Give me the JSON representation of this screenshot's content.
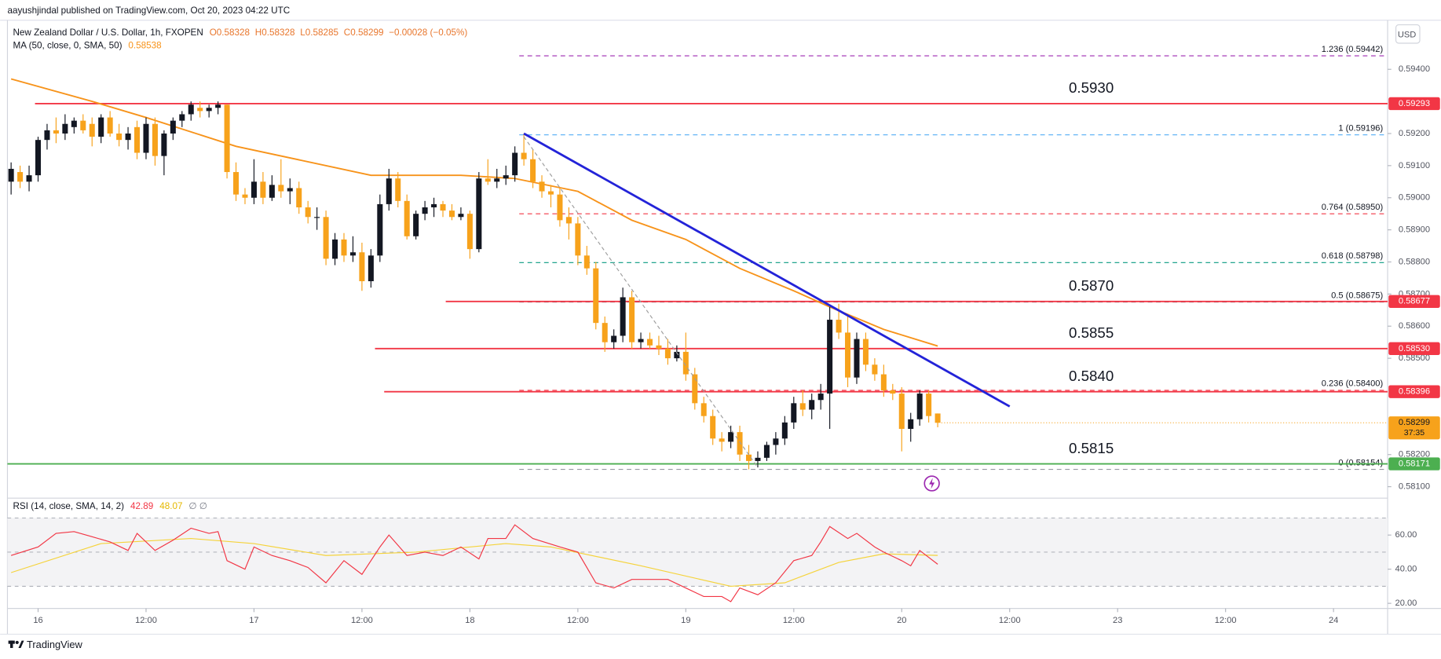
{
  "chart_data": {
    "type": "candlestick",
    "publisher": "aayushjindal published on TradingView.com, Oct 20, 2023 04:22 UTC",
    "title": "New Zealand Dollar / U.S. Dollar, 1h, FXOPEN",
    "ohlc": [
      "O0.58328",
      "H0.58328",
      "L0.58285",
      "C0.58299",
      "−0.00028 (−0.05%)"
    ],
    "currency": "USD",
    "up_color": "#131722",
    "down_color": "#f7a21b",
    "candles": [
      [
        0.5905,
        0.5911,
        0.5901,
        0.5909
      ],
      [
        0.5908,
        0.591,
        0.5903,
        0.5905
      ],
      [
        0.5905,
        0.591,
        0.5902,
        0.5907
      ],
      [
        0.5907,
        0.5919,
        0.5905,
        0.5918
      ],
      [
        0.5918,
        0.5923,
        0.5915,
        0.5921
      ],
      [
        0.5921,
        0.5925,
        0.5917,
        0.592
      ],
      [
        0.592,
        0.5926,
        0.5918,
        0.5923
      ],
      [
        0.5922,
        0.5925,
        0.592,
        0.5924
      ],
      [
        0.5924,
        0.5926,
        0.592,
        0.5921
      ],
      [
        0.5923,
        0.5925,
        0.5916,
        0.5919
      ],
      [
        0.5919,
        0.5926,
        0.5917,
        0.5925
      ],
      [
        0.5925,
        0.5927,
        0.5919,
        0.592
      ],
      [
        0.592,
        0.5923,
        0.5916,
        0.5918
      ],
      [
        0.5918,
        0.5922,
        0.5915,
        0.592
      ],
      [
        0.5922,
        0.5924,
        0.5912,
        0.5914
      ],
      [
        0.5914,
        0.5925,
        0.5912,
        0.5923
      ],
      [
        0.5923,
        0.5925,
        0.591,
        0.5913
      ],
      [
        0.5913,
        0.5921,
        0.5907,
        0.592
      ],
      [
        0.592,
        0.5925,
        0.5918,
        0.5924
      ],
      [
        0.5924,
        0.5927,
        0.5922,
        0.5926
      ],
      [
        0.5926,
        0.593,
        0.5924,
        0.5929
      ],
      [
        0.5928,
        0.593,
        0.5925,
        0.5927
      ],
      [
        0.5927,
        0.5929,
        0.5925,
        0.5928
      ],
      [
        0.5928,
        0.593,
        0.5926,
        0.5929
      ],
      [
        0.5929,
        0.5929,
        0.5906,
        0.5908
      ],
      [
        0.5908,
        0.5911,
        0.5899,
        0.5901
      ],
      [
        0.5901,
        0.5903,
        0.5898,
        0.59
      ],
      [
        0.59,
        0.5912,
        0.5898,
        0.5905
      ],
      [
        0.5905,
        0.5908,
        0.5898,
        0.59
      ],
      [
        0.59,
        0.5907,
        0.5899,
        0.5904
      ],
      [
        0.5904,
        0.5912,
        0.59,
        0.5902
      ],
      [
        0.5902,
        0.5906,
        0.5898,
        0.5903
      ],
      [
        0.5903,
        0.5905,
        0.5895,
        0.5897
      ],
      [
        0.5897,
        0.5899,
        0.5892,
        0.5894
      ],
      [
        0.5894,
        0.5897,
        0.589,
        0.5894
      ],
      [
        0.5894,
        0.5896,
        0.5879,
        0.5881
      ],
      [
        0.5881,
        0.5889,
        0.5879,
        0.5887
      ],
      [
        0.5887,
        0.5889,
        0.588,
        0.5882
      ],
      [
        0.5882,
        0.5888,
        0.588,
        0.5883
      ],
      [
        0.5883,
        0.5886,
        0.5871,
        0.5874
      ],
      [
        0.5874,
        0.5884,
        0.5872,
        0.5882
      ],
      [
        0.5882,
        0.5901,
        0.588,
        0.5898
      ],
      [
        0.5898,
        0.5909,
        0.5896,
        0.5906
      ],
      [
        0.5906,
        0.5908,
        0.5897,
        0.5899
      ],
      [
        0.5899,
        0.5901,
        0.5887,
        0.5888
      ],
      [
        0.5888,
        0.5896,
        0.5887,
        0.5895
      ],
      [
        0.5895,
        0.5899,
        0.5893,
        0.5897
      ],
      [
        0.5897,
        0.59,
        0.5894,
        0.5898
      ],
      [
        0.5898,
        0.5899,
        0.5894,
        0.5896
      ],
      [
        0.5896,
        0.5898,
        0.5893,
        0.5894
      ],
      [
        0.5894,
        0.5897,
        0.5893,
        0.5895
      ],
      [
        0.5895,
        0.5896,
        0.5881,
        0.5884
      ],
      [
        0.5884,
        0.5908,
        0.5883,
        0.5906
      ],
      [
        0.5906,
        0.5912,
        0.5904,
        0.5905
      ],
      [
        0.5905,
        0.5909,
        0.5903,
        0.5906
      ],
      [
        0.5906,
        0.591,
        0.5904,
        0.5907
      ],
      [
        0.5907,
        0.5916,
        0.5905,
        0.5914
      ],
      [
        0.5914,
        0.592,
        0.591,
        0.5912
      ],
      [
        0.5912,
        0.5915,
        0.5903,
        0.5905
      ],
      [
        0.5905,
        0.5907,
        0.59,
        0.5902
      ],
      [
        0.5902,
        0.5904,
        0.5897,
        0.5901
      ],
      [
        0.5901,
        0.5903,
        0.5891,
        0.5893
      ],
      [
        0.5894,
        0.5897,
        0.5887,
        0.5892
      ],
      [
        0.5892,
        0.5894,
        0.5879,
        0.5882
      ],
      [
        0.5882,
        0.5885,
        0.5876,
        0.5878
      ],
      [
        0.5878,
        0.588,
        0.5859,
        0.5861
      ],
      [
        0.5861,
        0.5863,
        0.5852,
        0.5855
      ],
      [
        0.5855,
        0.5859,
        0.5853,
        0.5857
      ],
      [
        0.5857,
        0.5872,
        0.5855,
        0.5869
      ],
      [
        0.5869,
        0.5871,
        0.5853,
        0.5855
      ],
      [
        0.5855,
        0.5858,
        0.5853,
        0.5856
      ],
      [
        0.5856,
        0.5858,
        0.5853,
        0.5854
      ],
      [
        0.5854,
        0.5857,
        0.5851,
        0.5853
      ],
      [
        0.5853,
        0.5856,
        0.5848,
        0.585
      ],
      [
        0.585,
        0.5854,
        0.5849,
        0.5852
      ],
      [
        0.5852,
        0.5858,
        0.5843,
        0.5845
      ],
      [
        0.5845,
        0.5847,
        0.5834,
        0.5836
      ],
      [
        0.5836,
        0.5838,
        0.583,
        0.5832
      ],
      [
        0.5832,
        0.5834,
        0.5823,
        0.5825
      ],
      [
        0.5825,
        0.5827,
        0.5821,
        0.5824
      ],
      [
        0.5824,
        0.5829,
        0.5822,
        0.5827
      ],
      [
        0.5827,
        0.5829,
        0.5818,
        0.582
      ],
      [
        0.582,
        0.5823,
        0.58154,
        0.5818
      ],
      [
        0.5818,
        0.5821,
        0.5816,
        0.5819
      ],
      [
        0.5819,
        0.5824,
        0.5818,
        0.5823
      ],
      [
        0.5823,
        0.5827,
        0.582,
        0.5825
      ],
      [
        0.5825,
        0.5832,
        0.5823,
        0.583
      ],
      [
        0.583,
        0.5838,
        0.5828,
        0.5836
      ],
      [
        0.5836,
        0.584,
        0.5832,
        0.5834
      ],
      [
        0.5834,
        0.5839,
        0.5831,
        0.5837
      ],
      [
        0.5837,
        0.5842,
        0.5834,
        0.5839
      ],
      [
        0.5839,
        0.5866,
        0.5828,
        0.5862
      ],
      [
        0.5862,
        0.5867,
        0.5856,
        0.5858
      ],
      [
        0.5858,
        0.5863,
        0.5841,
        0.5844
      ],
      [
        0.5844,
        0.5858,
        0.5842,
        0.5856
      ],
      [
        0.5856,
        0.5858,
        0.5846,
        0.5848
      ],
      [
        0.5848,
        0.585,
        0.5843,
        0.5845
      ],
      [
        0.5845,
        0.5848,
        0.5838,
        0.584
      ],
      [
        0.584,
        0.5842,
        0.5837,
        0.5839
      ],
      [
        0.5839,
        0.5841,
        0.5821,
        0.5828
      ],
      [
        0.5828,
        0.5833,
        0.5824,
        0.5831
      ],
      [
        0.5831,
        0.584,
        0.5829,
        0.5839
      ],
      [
        0.5839,
        0.584,
        0.583,
        0.5832
      ],
      [
        0.58328,
        0.58328,
        0.58285,
        0.58299
      ]
    ],
    "ylim": [
      0.5807,
      0.5953
    ],
    "yticks": [
      {
        "value": 0.581,
        "label": "0.58100"
      },
      {
        "value": 0.582,
        "label": "0.58200"
      },
      {
        "value": 0.585,
        "label": "0.58500"
      },
      {
        "value": 0.586,
        "label": "0.58600"
      },
      {
        "value": 0.587,
        "label": "0.58700"
      },
      {
        "value": 0.588,
        "label": "0.58800"
      },
      {
        "value": 0.589,
        "label": "0.58900"
      },
      {
        "value": 0.59,
        "label": "0.59000"
      },
      {
        "value": 0.591,
        "label": "0.59100"
      },
      {
        "value": 0.592,
        "label": "0.59200"
      },
      {
        "value": 0.594,
        "label": "0.59400"
      }
    ],
    "xticks": [
      {
        "value": 3,
        "label": "16"
      },
      {
        "value": 15,
        "label": "12:00"
      },
      {
        "value": 27,
        "label": "17"
      },
      {
        "value": 39,
        "label": "12:00"
      },
      {
        "value": 51,
        "label": "18"
      },
      {
        "value": 63,
        "label": "12:00"
      },
      {
        "value": 75,
        "label": "19"
      },
      {
        "value": 87,
        "label": "12:00"
      },
      {
        "value": 99,
        "label": "20"
      },
      {
        "value": 111,
        "label": "12:00"
      },
      {
        "value": 123,
        "label": "23"
      },
      {
        "value": 135,
        "label": "12:00"
      },
      {
        "value": 147,
        "label": "24"
      }
    ],
    "ma": {
      "name": "MA (50, close, 0, SMA, 50)",
      "color": "#f7931a",
      "x": [
        0,
        9,
        15,
        25,
        40,
        50,
        56,
        63,
        69,
        75,
        81,
        87,
        91,
        97,
        103
      ],
      "values": [
        0.5937,
        0.593,
        0.5925,
        0.5916,
        0.5907,
        0.5907,
        0.5906,
        0.5902,
        0.5893,
        0.5887,
        0.5878,
        0.5871,
        0.5866,
        0.5859,
        0.58538
      ]
    },
    "current": {
      "value": 0.58299,
      "label": "0.58299",
      "countdown": "37:35",
      "color": "#f7a21b"
    },
    "levels": [
      {
        "value": 0.59293,
        "value_label": "0.59293",
        "annotation": "0.5930",
        "color": "#f23645"
      },
      {
        "value": 0.58677,
        "value_label": "0.58677",
        "annotation": "0.5870",
        "color": "#f23645"
      },
      {
        "value": 0.5853,
        "value_label": "0.58530",
        "annotation": "0.5855",
        "color": "#f23645"
      },
      {
        "value": 0.58396,
        "value_label": "0.58396",
        "annotation": "0.5840",
        "color": "#f23645"
      },
      {
        "value": 0.58171,
        "value_label": "0.58171",
        "annotation": "0.5815",
        "color": "#4caf50"
      }
    ],
    "annotation_color": "#f7a21b",
    "fib": [
      {
        "value": 0.59442,
        "label": "1.236 (0.59442)",
        "color": "#9c27b0"
      },
      {
        "value": 0.59196,
        "label": "1 (0.59196)",
        "color": "#64b5f6"
      },
      {
        "value": 0.5895,
        "label": "0.764 (0.58950)",
        "color": "#f23645"
      },
      {
        "value": 0.58798,
        "label": "0.618 (0.58798)",
        "color": "#089981"
      },
      {
        "value": 0.58675,
        "label": "0.5 (0.58675)",
        "color": "#787b86"
      },
      {
        "value": 0.584,
        "label": "0.236 (0.58400)",
        "color": "#f23645"
      },
      {
        "value": 0.58154,
        "label": "0 (0.58154)",
        "color": "#9598a1"
      }
    ],
    "trendlines": [
      {
        "x": [
          57,
          111
        ],
        "values": [
          0.592,
          0.5835
        ],
        "color": "#2323d8",
        "dashed": false
      },
      {
        "x": [
          57,
          83
        ],
        "values": [
          0.5919,
          0.5816
        ],
        "color": "#9e9e9e",
        "dashed": true
      }
    ],
    "rsi": {
      "name": "RSI (14, close, SMA, 14, 2)",
      "flags": "∅ ∅",
      "color": "#f23645",
      "x": [
        0,
        3,
        5,
        7,
        9,
        11,
        13,
        14,
        16,
        18,
        20,
        22,
        23,
        24,
        26,
        27,
        29,
        31,
        33,
        35,
        37,
        39,
        41,
        42,
        44,
        46,
        48,
        50,
        52,
        53,
        55,
        56,
        58,
        61,
        63,
        65,
        67,
        69,
        71,
        73,
        75,
        77,
        79,
        80,
        81,
        83,
        85,
        87,
        89,
        90,
        91,
        93,
        94,
        96,
        97,
        99,
        100,
        101,
        103
      ],
      "values": [
        48,
        53,
        61,
        62,
        59,
        56,
        51,
        61,
        51,
        57,
        64,
        61,
        62,
        45,
        40,
        53,
        48,
        45,
        41,
        32,
        45,
        37,
        53,
        60,
        48,
        50,
        48,
        53,
        46,
        58,
        58,
        66,
        58,
        53,
        50,
        32,
        29,
        34,
        34,
        34,
        29,
        24,
        24,
        21,
        29,
        25,
        32,
        45,
        48,
        56,
        65,
        58,
        61,
        53,
        50,
        45,
        42,
        51,
        42.89
      ],
      "ma": {
        "color": "#f5d33b",
        "x": [
          0,
          10,
          20,
          27,
          35,
          45,
          55,
          60,
          70,
          80,
          86,
          92,
          97,
          103
        ],
        "values": [
          38,
          55,
          58,
          55,
          48,
          50,
          55,
          53,
          42,
          30,
          32,
          44,
          49,
          48.07
        ]
      },
      "ylim": [
        17,
        80
      ],
      "yticks": [
        {
          "value": 20,
          "label": "20.00"
        },
        {
          "value": 40,
          "label": "40.00"
        },
        {
          "value": 60,
          "label": "60.00"
        }
      ],
      "levels": [
        70,
        50,
        30
      ]
    },
    "brand": "TradingView"
  }
}
